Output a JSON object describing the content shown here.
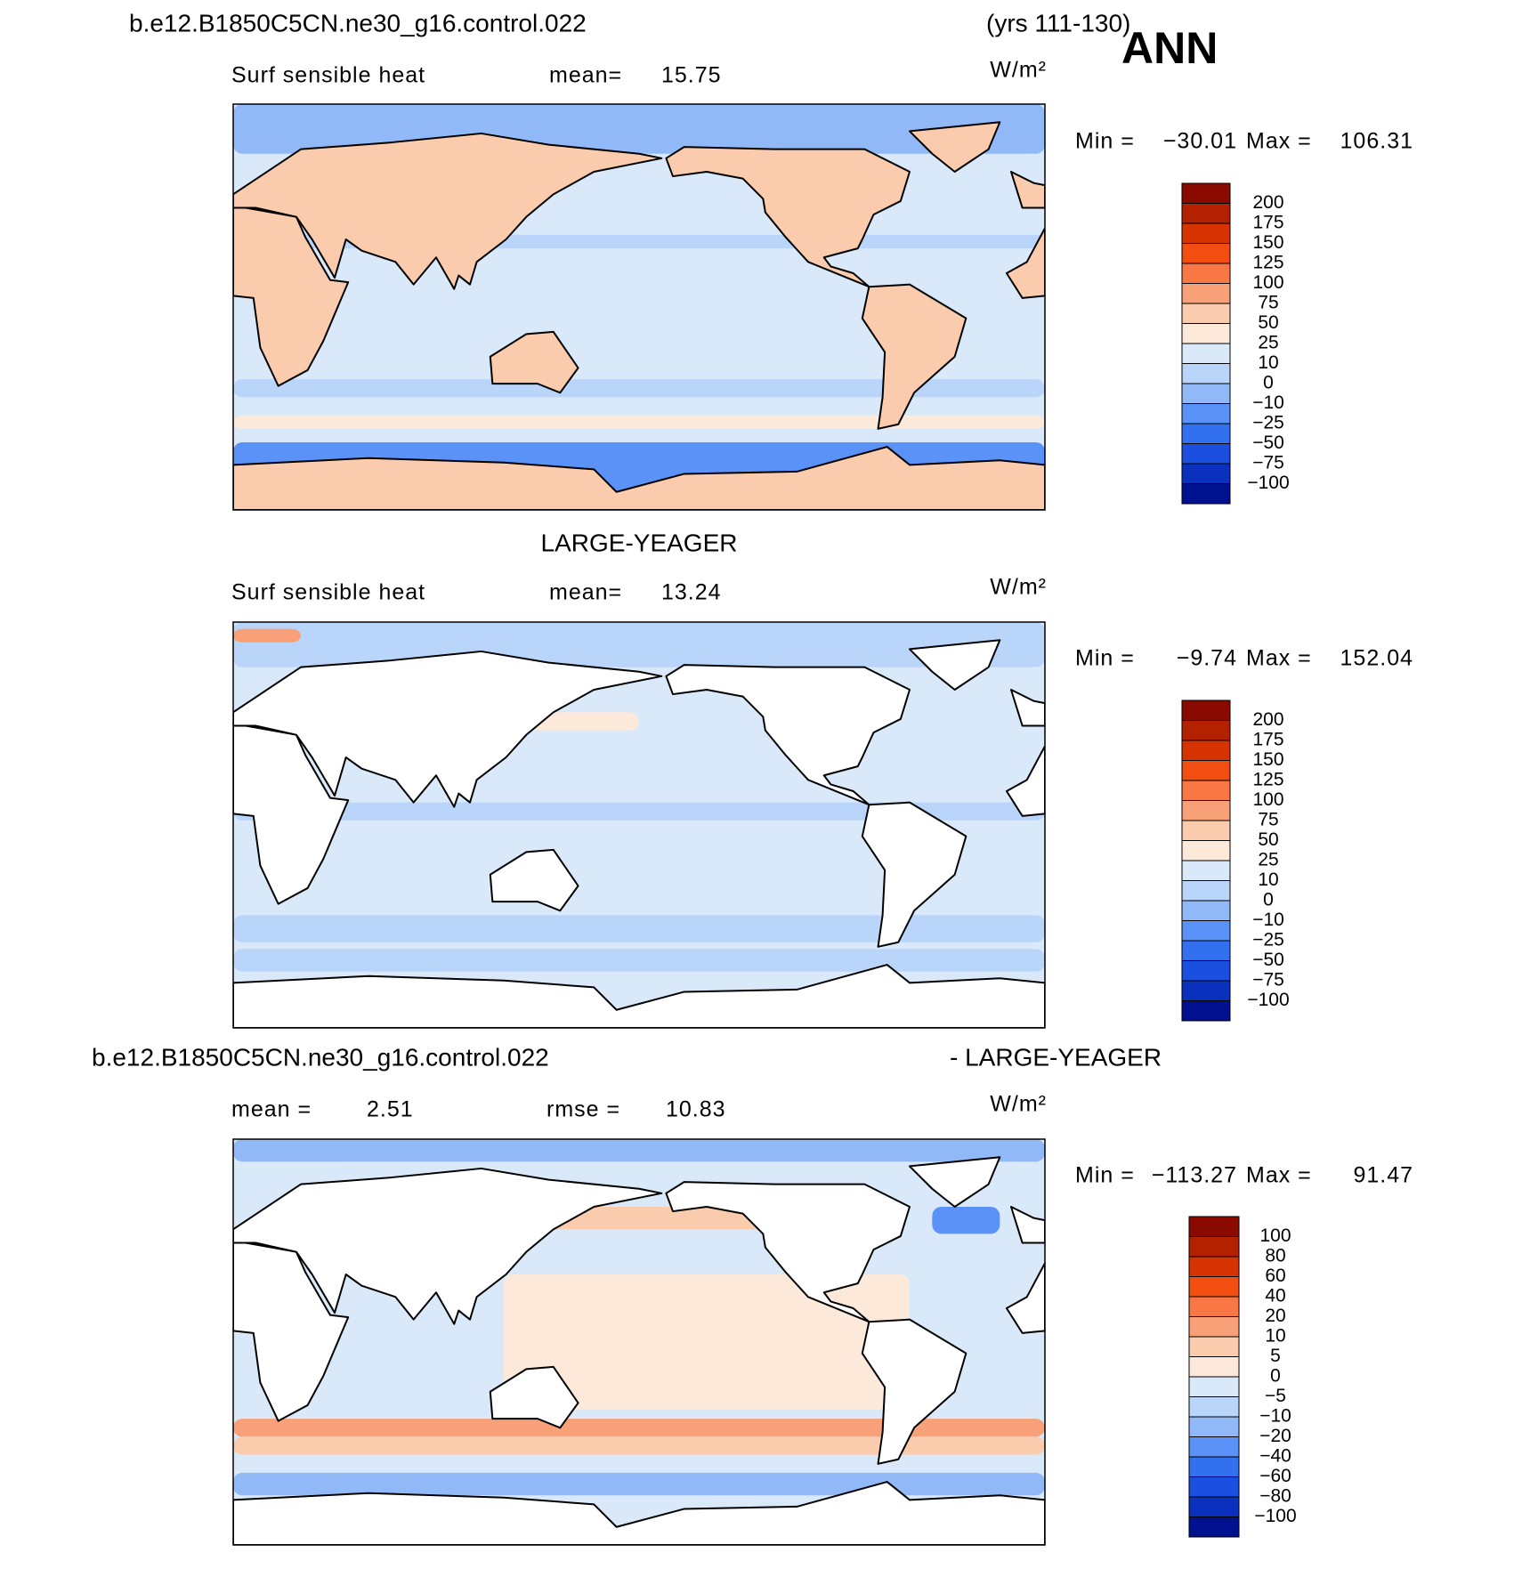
{
  "header": {
    "title": "b.e12.B1850C5CN.ne30_g16.control.022",
    "years": "(yrs 111-130)",
    "season": "ANN"
  },
  "panels": [
    {
      "variable": "Surf sensible heat",
      "stat1_label": "mean=",
      "stat1_value": "15.75",
      "units": "W/m²",
      "min_label": "Min =",
      "min": "−30.01",
      "max_label": "Max =",
      "max": "106.31",
      "levels": [
        "200",
        "175",
        "150",
        "125",
        "100",
        "75",
        "50",
        "25",
        "10",
        "0",
        "−10",
        "−25",
        "−50",
        "−75",
        "−100"
      ]
    },
    {
      "title": "LARGE-YEAGER",
      "variable": "Surf sensible heat",
      "stat1_label": "mean=",
      "stat1_value": "13.24",
      "units": "W/m²",
      "min_label": "Min =",
      "min": "−9.74",
      "max_label": "Max =",
      "max": "152.04",
      "levels": [
        "200",
        "175",
        "150",
        "125",
        "100",
        "75",
        "50",
        "25",
        "10",
        "0",
        "−10",
        "−25",
        "−50",
        "−75",
        "−100"
      ]
    },
    {
      "title": "b.e12.B1850C5CN.ne30_g16.control.022",
      "title_right": "- LARGE-YEAGER",
      "stat1_label": "mean =",
      "stat1_value": "2.51",
      "stat2_label": "rmse =",
      "stat2_value": "10.83",
      "units": "W/m²",
      "min_label": "Min =",
      "min": "−113.27",
      "max_label": "Max =",
      "max": "91.47",
      "levels": [
        "100",
        "80",
        "60",
        "40",
        "20",
        "10",
        "5",
        "0",
        "−5",
        "−10",
        "−20",
        "−40",
        "−60",
        "−80",
        "−100"
      ]
    }
  ],
  "colors": [
    "#8b0a00",
    "#b42100",
    "#d63300",
    "#f24e12",
    "#f87744",
    "#f8a078",
    "#fbcbad",
    "#fde9d9",
    "#d9e9fa",
    "#b9d5f9",
    "#91b9f8",
    "#5a92f7",
    "#3270f0",
    "#1a4fdf",
    "#0a31be",
    "#001190"
  ]
}
